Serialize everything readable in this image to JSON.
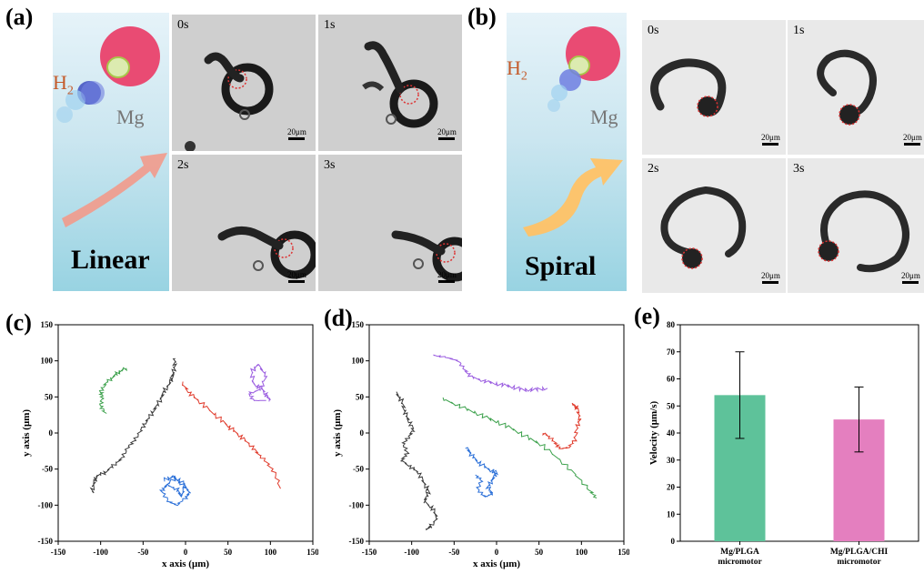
{
  "panels": {
    "a": {
      "letter": "(a)",
      "h2": "H",
      "h2_sub": "2",
      "mg": "Mg",
      "mode": "Linear",
      "times": [
        "0s",
        "1s",
        "2s",
        "3s"
      ],
      "scale": "20μm"
    },
    "b": {
      "letter": "(b)",
      "h2": "H",
      "h2_sub": "2",
      "mg": "Mg",
      "mode": "Spiral",
      "times": [
        "0s",
        "1s",
        "2s",
        "3s"
      ],
      "scale": "20μm"
    },
    "c": {
      "letter": "(c)"
    },
    "d": {
      "letter": "(d)"
    },
    "e": {
      "letter": "(e)"
    }
  },
  "chart_data": [
    {
      "type": "line",
      "panel": "c",
      "xlabel": "x axis (μm)",
      "ylabel": "y axis (μm)",
      "xlim": [
        -150,
        150
      ],
      "ylim": [
        -150,
        150
      ],
      "xticks": [
        -150,
        -100,
        -50,
        0,
        50,
        100,
        150
      ],
      "yticks": [
        -150,
        -100,
        -50,
        0,
        50,
        100,
        150
      ],
      "series": [
        {
          "color": "#3a3a3a",
          "points": [
            [
              -110,
              -83
            ],
            [
              -108,
              -70
            ],
            [
              -105,
              -60
            ],
            [
              -95,
              -55
            ],
            [
              -85,
              -45
            ],
            [
              -75,
              -35
            ],
            [
              -68,
              -20
            ],
            [
              -60,
              -10
            ],
            [
              -52,
              5
            ],
            [
              -45,
              18
            ],
            [
              -38,
              30
            ],
            [
              -30,
              45
            ],
            [
              -25,
              58
            ],
            [
              -18,
              70
            ],
            [
              -15,
              80
            ],
            [
              -13,
              92
            ],
            [
              -12,
              103
            ]
          ]
        },
        {
          "color": "#e03b2c",
          "points": [
            [
              -5,
              70
            ],
            [
              5,
              55
            ],
            [
              15,
              45
            ],
            [
              30,
              30
            ],
            [
              45,
              15
            ],
            [
              55,
              5
            ],
            [
              65,
              -5
            ],
            [
              75,
              -15
            ],
            [
              85,
              -28
            ],
            [
              95,
              -40
            ],
            [
              105,
              -55
            ],
            [
              112,
              -77
            ]
          ]
        },
        {
          "color": "#3aa04a",
          "points": [
            [
              -95,
              28
            ],
            [
              -100,
              38
            ],
            [
              -98,
              50
            ],
            [
              -100,
              58
            ],
            [
              -93,
              70
            ],
            [
              -85,
              78
            ],
            [
              -78,
              85
            ],
            [
              -70,
              90
            ]
          ]
        },
        {
          "color": "#2a6fd8",
          "points": [
            [
              -25,
              -65
            ],
            [
              -15,
              -60
            ],
            [
              -5,
              -70
            ],
            [
              5,
              -82
            ],
            [
              0,
              -90
            ],
            [
              -10,
              -100
            ],
            [
              -20,
              -95
            ],
            [
              -28,
              -80
            ],
            [
              -22,
              -72
            ],
            [
              -10,
              -78
            ],
            [
              -5,
              -88
            ],
            [
              0,
              -72
            ],
            [
              -12,
              -62
            ],
            [
              -25,
              -75
            ]
          ]
        },
        {
          "color": "#9a5ce0",
          "points": [
            [
              100,
              45
            ],
            [
              95,
              52
            ],
            [
              90,
              62
            ],
            [
              80,
              68
            ],
            [
              78,
              85
            ],
            [
              85,
              95
            ],
            [
              95,
              80
            ],
            [
              88,
              60
            ],
            [
              75,
              55
            ],
            [
              80,
              45
            ],
            [
              95,
              45
            ]
          ]
        }
      ]
    },
    {
      "type": "line",
      "panel": "d",
      "xlabel": "x axis (μm)",
      "ylabel": "y axis (μm)",
      "xlim": [
        -150,
        150
      ],
      "ylim": [
        -150,
        150
      ],
      "xticks": [
        -150,
        -100,
        -50,
        0,
        50,
        100,
        150
      ],
      "yticks": [
        -150,
        -100,
        -50,
        0,
        50,
        100,
        150
      ],
      "series": [
        {
          "color": "#3a3a3a",
          "points": [
            [
              -118,
              55
            ],
            [
              -112,
              45
            ],
            [
              -108,
              30
            ],
            [
              -104,
              18
            ],
            [
              -98,
              5
            ],
            [
              -103,
              -5
            ],
            [
              -110,
              -15
            ],
            [
              -105,
              -28
            ],
            [
              -112,
              -38
            ],
            [
              -100,
              -48
            ],
            [
              -92,
              -55
            ],
            [
              -85,
              -70
            ],
            [
              -80,
              -82
            ],
            [
              -85,
              -95
            ],
            [
              -75,
              -105
            ],
            [
              -70,
              -118
            ],
            [
              -78,
              -130
            ],
            [
              -83,
              -134
            ]
          ]
        },
        {
          "color": "#3aa04a",
          "points": [
            [
              -65,
              48
            ],
            [
              -45,
              38
            ],
            [
              -25,
              28
            ],
            [
              -5,
              18
            ],
            [
              15,
              8
            ],
            [
              35,
              -5
            ],
            [
              55,
              -18
            ],
            [
              75,
              -38
            ],
            [
              95,
              -60
            ],
            [
              110,
              -80
            ],
            [
              118,
              -90
            ]
          ]
        },
        {
          "color": "#9a5ce0",
          "points": [
            [
              -75,
              108
            ],
            [
              -60,
              105
            ],
            [
              -45,
              100
            ],
            [
              -38,
              88
            ],
            [
              -30,
              78
            ],
            [
              -15,
              72
            ],
            [
              0,
              68
            ],
            [
              15,
              65
            ],
            [
              30,
              60
            ],
            [
              45,
              60
            ],
            [
              60,
              62
            ]
          ]
        },
        {
          "color": "#e03b2c",
          "points": [
            [
              90,
              40
            ],
            [
              95,
              35
            ],
            [
              98,
              20
            ],
            [
              95,
              8
            ],
            [
              92,
              -10
            ],
            [
              85,
              -20
            ],
            [
              75,
              -22
            ],
            [
              70,
              -15
            ],
            [
              62,
              -5
            ],
            [
              55,
              0
            ]
          ]
        },
        {
          "color": "#2a6fd8",
          "points": [
            [
              -35,
              -20
            ],
            [
              -30,
              -30
            ],
            [
              -22,
              -40
            ],
            [
              -10,
              -50
            ],
            [
              0,
              -55
            ],
            [
              -5,
              -65
            ],
            [
              -10,
              -75
            ],
            [
              -5,
              -85
            ],
            [
              -15,
              -88
            ],
            [
              -22,
              -78
            ],
            [
              -18,
              -65
            ],
            [
              -25,
              -58
            ]
          ]
        }
      ]
    },
    {
      "type": "bar",
      "panel": "e",
      "ylabel": "Velocity (μm/s)",
      "ylim": [
        0,
        80
      ],
      "yticks": [
        0,
        10,
        20,
        30,
        40,
        50,
        60,
        70,
        80
      ],
      "categories": [
        "Mg/PLGA micromotor",
        "Mg/PLGA/CHI micromotor"
      ],
      "category_lines": [
        [
          "Mg/PLGA",
          "micromotor"
        ],
        [
          "Mg/PLGA/CHI",
          "micromotor"
        ]
      ],
      "values": [
        54,
        45
      ],
      "errors": [
        16,
        12
      ],
      "colors": [
        "#5ec29a",
        "#e47fbf"
      ]
    }
  ]
}
